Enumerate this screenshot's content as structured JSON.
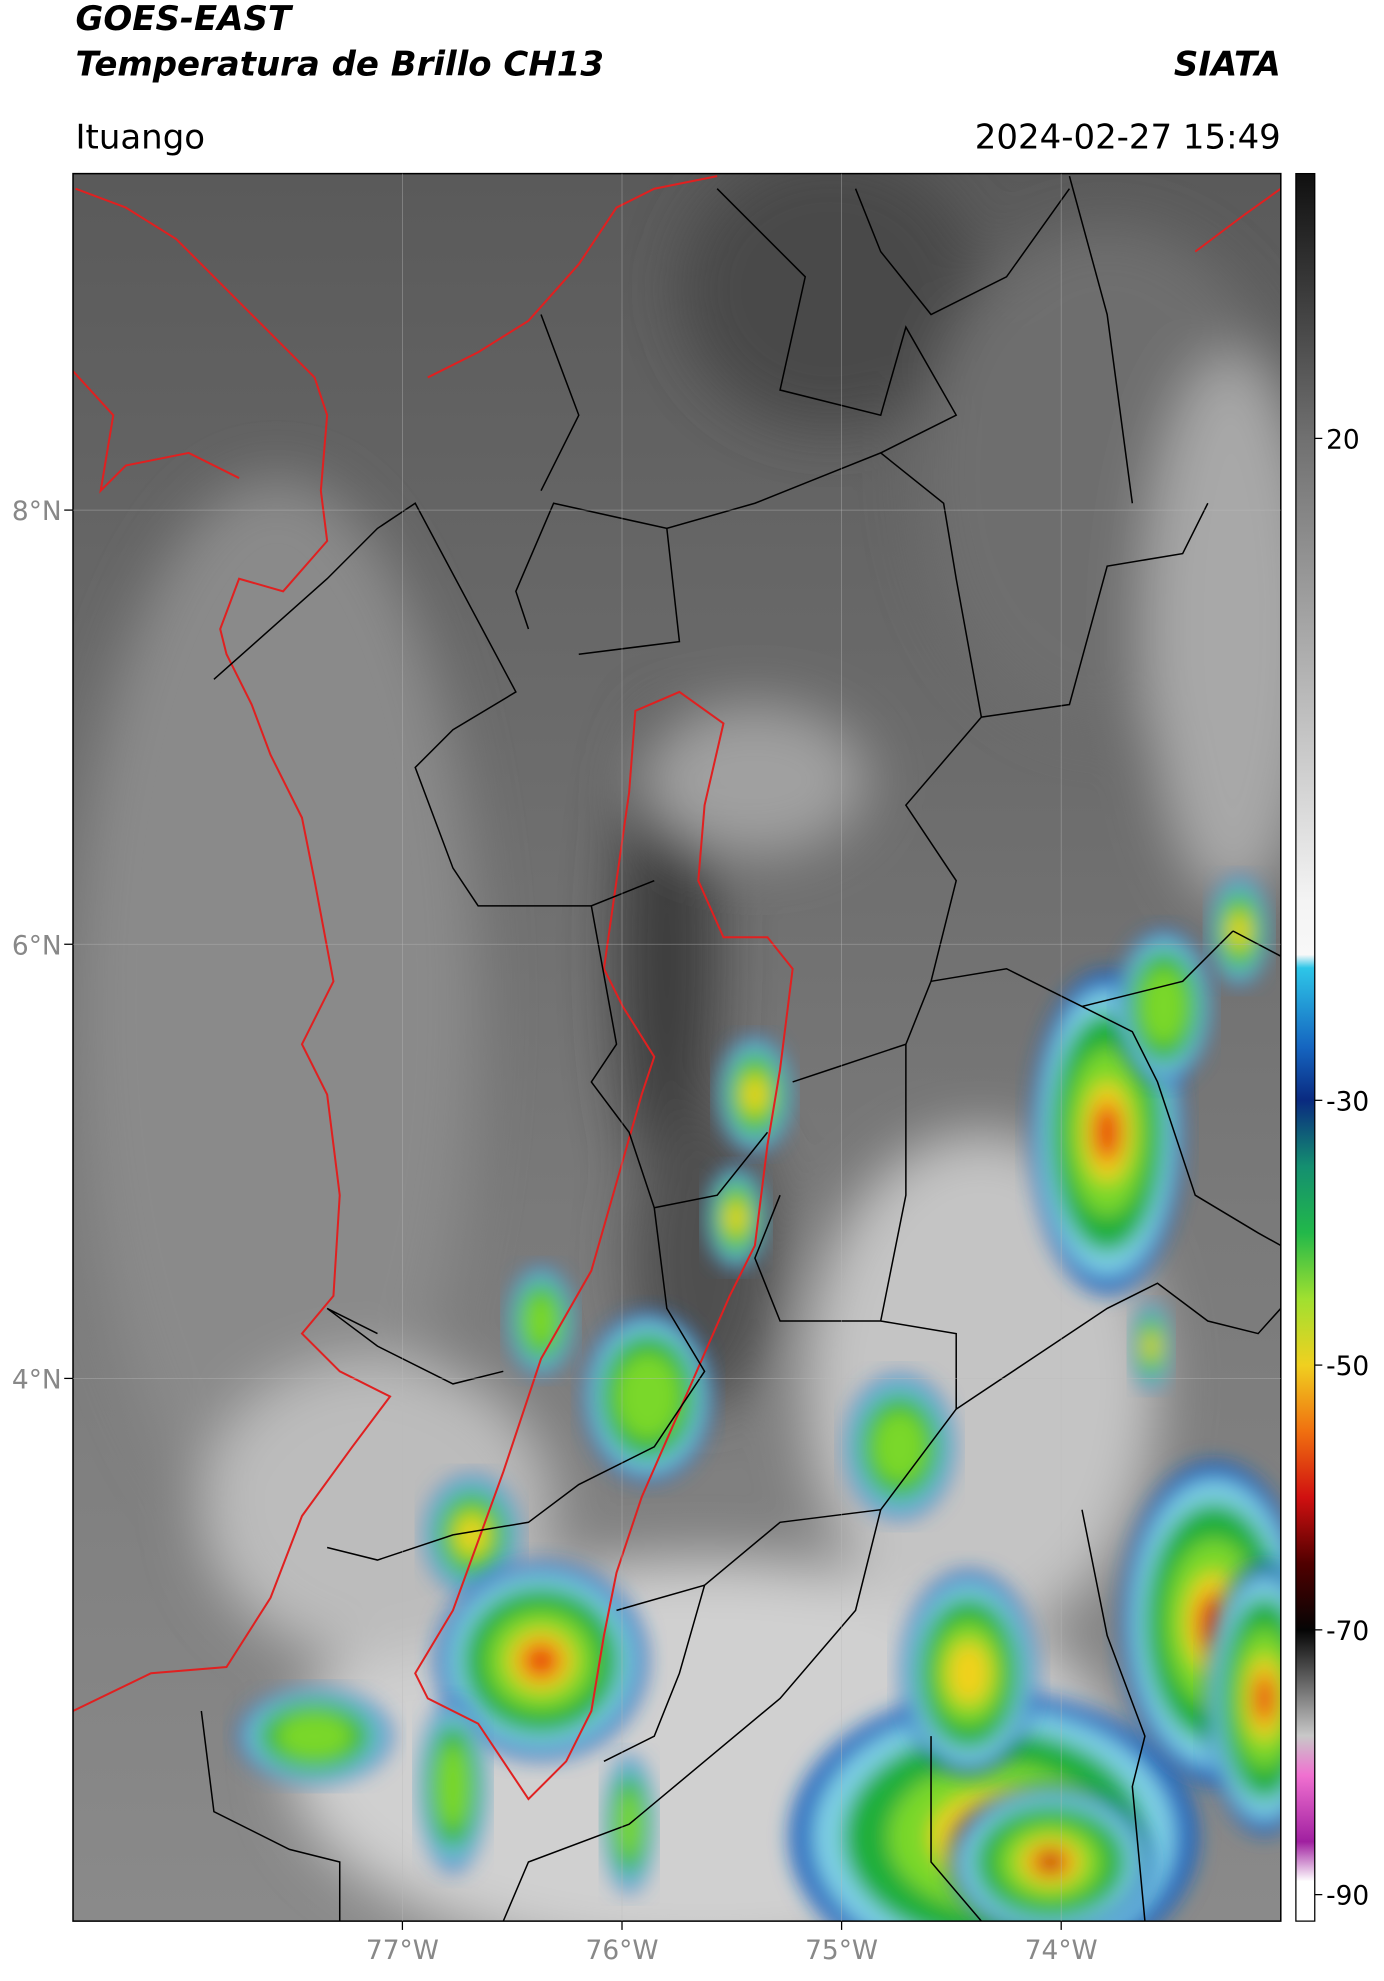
{
  "header": {
    "title": "GOES-EAST",
    "subtitle": "Temperatura de Brillo CH13",
    "source": "SIATA",
    "location": "Ituango",
    "datetime": "2024-02-27 15:49"
  },
  "map": {
    "xlim": [
      -78.5,
      -73
    ],
    "ylim": [
      1.5,
      9.55
    ],
    "xticks": [
      {
        "value": -77,
        "label": "77°W"
      },
      {
        "value": -76,
        "label": "76°W"
      },
      {
        "value": -75,
        "label": "75°W"
      },
      {
        "value": -74,
        "label": "74°W"
      }
    ],
    "yticks": [
      {
        "value": 4,
        "label": "4°N"
      },
      {
        "value": 6,
        "label": "6°N"
      },
      {
        "value": 8,
        "label": "8°N"
      }
    ]
  },
  "colorbar": {
    "lim": [
      -92,
      40
    ],
    "ticks": [
      20,
      -30,
      -50,
      -70,
      -90
    ]
  }
}
